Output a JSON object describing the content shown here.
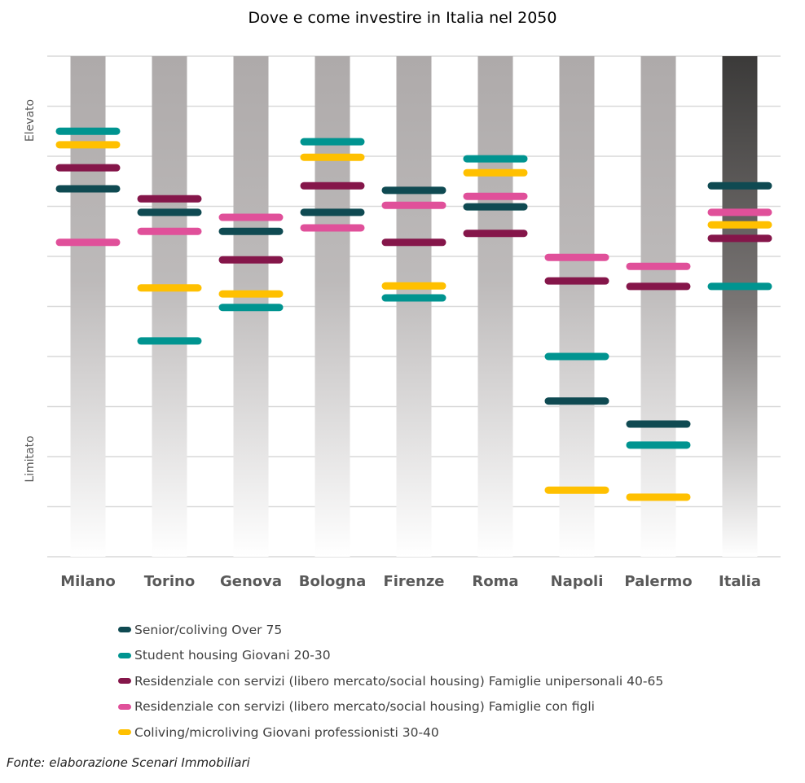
{
  "chart_data": {
    "type": "scatter",
    "title": "Dove e come investire in Italia nel 2050",
    "categories": [
      "Milano",
      "Torino",
      "Genova",
      "Bologna",
      "Firenze",
      "Roma",
      "Napoli",
      "Palermo",
      "Italia"
    ],
    "ylabel_high": "Elevato",
    "ylabel_low": "Limitato",
    "ylim": [
      0,
      10
    ],
    "grid": true,
    "legend_position": "bottom",
    "series": [
      {
        "name": "Senior/coliving Over 75",
        "color": "#0f4a52",
        "values": [
          7.35,
          6.88,
          6.5,
          6.88,
          7.32,
          6.99,
          3.11,
          2.65,
          7.41
        ]
      },
      {
        "name": "Student housing Giovani 20-30",
        "color": "#009490",
        "values": [
          8.5,
          4.31,
          4.98,
          8.29,
          5.17,
          7.95,
          4.0,
          2.23,
          5.4
        ]
      },
      {
        "name": "Residenziale con servizi (libero mercato/social housing) Famiglie unipersonali 40-65",
        "color": "#85164a",
        "values": [
          7.77,
          7.15,
          5.93,
          7.41,
          6.28,
          6.46,
          5.51,
          5.4,
          6.36
        ]
      },
      {
        "name": "Residenziale con servizi (libero mercato/social housing) Famiglie con figli",
        "color": "#e0509a",
        "values": [
          6.28,
          6.5,
          6.78,
          6.57,
          7.02,
          7.2,
          5.98,
          5.8,
          6.88
        ]
      },
      {
        "name": "Coliving/microliving Giovani professionisti 30-40",
        "color": "#ffc000",
        "values": [
          8.23,
          5.37,
          5.25,
          7.98,
          5.41,
          7.67,
          1.33,
          1.19,
          6.63
        ]
      }
    ]
  },
  "source": "Fonte: elaborazione Scenari Immobiliari"
}
